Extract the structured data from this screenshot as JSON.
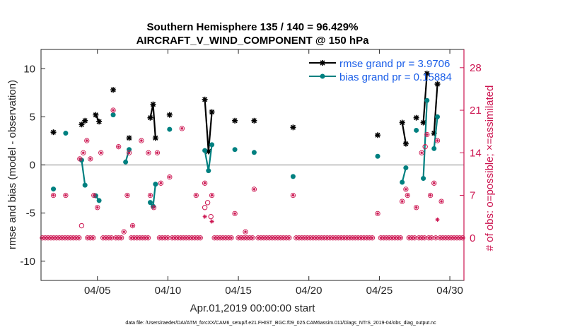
{
  "chart_data": {
    "type": "line",
    "title": "Southern Hemisphere 135 / 140 = 96.429%",
    "subtitle": "AIRCRAFT_V_WIND_COMPONENT @ 150 hPa",
    "xlabel": "Apr.01,2019 00:00:00 start",
    "ylabel": "rmse and bias (model - observation)",
    "ylabel_right": "# of obs: o=possible; ×=assimilated",
    "xlim": [
      1,
      31
    ],
    "ylim": [
      -12,
      12
    ],
    "ylim_right": [
      -7,
      31
    ],
    "x_ticks": [
      5,
      10,
      15,
      20,
      25,
      30
    ],
    "x_tick_labels": [
      "04/05",
      "04/10",
      "04/15",
      "04/20",
      "04/25",
      "04/30"
    ],
    "y_ticks": [
      -10,
      -5,
      0,
      5,
      10
    ],
    "y_tick_labels": [
      "-10",
      "-5",
      "0",
      "5",
      "10"
    ],
    "y_right_ticks": [
      0,
      7,
      14,
      21,
      28
    ],
    "y_right_tick_labels": [
      "0",
      "7",
      "14",
      "21",
      "28"
    ],
    "footer": "data file: /Users/raeder/DAI/ATM_forcXX/CAM6_setup/f.e21.FHIST_BGC.f09_025.CAM6assim.011/Diags_NTrS_2019-04/obs_diag_output.nc",
    "series": [
      {
        "name": "rmse grand pr = 3.9706",
        "color": "#000000",
        "marker": "asterisk",
        "segments": [
          [
            [
              1.88,
              3.4
            ]
          ],
          [
            [
              3.88,
              4.2
            ],
            [
              4.12,
              4.6
            ]
          ],
          [
            [
              4.88,
              5.2
            ],
            [
              5.12,
              4.5
            ]
          ],
          [
            [
              6.12,
              7.8
            ]
          ],
          [
            [
              7.25,
              2.8
            ]
          ],
          [
            [
              8.75,
              4.9
            ],
            [
              8.95,
              6.3
            ],
            [
              9.12,
              2.8
            ]
          ],
          [
            [
              10.12,
              5.2
            ]
          ],
          [
            [
              12.62,
              6.8
            ],
            [
              12.88,
              1.4
            ],
            [
              13.12,
              5.5
            ]
          ],
          [
            [
              14.75,
              4.6
            ]
          ],
          [
            [
              16.12,
              4.6
            ]
          ],
          [
            [
              18.88,
              3.9
            ]
          ],
          [
            [
              24.88,
              3.1
            ]
          ],
          [
            [
              26.62,
              4.4
            ],
            [
              26.88,
              2.2
            ]
          ],
          [
            [
              27.62,
              4.9
            ]
          ],
          [
            [
              28.12,
              4.4
            ],
            [
              28.38,
              9.5
            ]
          ],
          [
            [
              28.88,
              3.3
            ],
            [
              29.12,
              8.4
            ]
          ]
        ]
      },
      {
        "name": "bias grand pr = 0.15884",
        "color": "#008080",
        "marker": "dot",
        "segments": [
          [
            [
              1.88,
              -2.5
            ]
          ],
          [
            [
              2.75,
              3.3
            ]
          ],
          [
            [
              3.88,
              0.5
            ],
            [
              4.12,
              -2.1
            ]
          ],
          [
            [
              4.88,
              -3.2
            ],
            [
              5.12,
              -3.7
            ]
          ],
          [
            [
              6.12,
              5.2
            ]
          ],
          [
            [
              7.0,
              0.3
            ],
            [
              7.25,
              1.6
            ]
          ],
          [
            [
              8.75,
              -3.9
            ],
            [
              8.95,
              -4.3
            ],
            [
              9.12,
              -2.0
            ]
          ],
          [
            [
              10.12,
              3.7
            ]
          ],
          [
            [
              12.62,
              1.5
            ],
            [
              12.88,
              -0.6
            ],
            [
              13.12,
              2.1
            ]
          ],
          [
            [
              14.75,
              1.6
            ]
          ],
          [
            [
              16.12,
              1.3
            ]
          ],
          [
            [
              18.88,
              -1.2
            ]
          ],
          [
            [
              24.88,
              0.9
            ]
          ],
          [
            [
              26.62,
              -1.8
            ],
            [
              26.88,
              -0.3
            ]
          ],
          [
            [
              27.62,
              3.6
            ]
          ],
          [
            [
              28.12,
              -1.4
            ],
            [
              28.38,
              6.7
            ]
          ],
          [
            [
              28.88,
              1.7
            ],
            [
              29.12,
              5.0
            ]
          ]
        ]
      },
      {
        "name": "# of obs possible",
        "color": "#cc1450",
        "marker": "circle",
        "points": [
          [
            3.88,
            2
          ],
          [
            12.62,
            5
          ],
          [
            12.82,
            5.8
          ],
          [
            13.05,
            3.5
          ],
          [
            28.25,
            15
          ]
        ]
      },
      {
        "name": "# of obs assimilated",
        "color": "#cc1450",
        "marker": "x",
        "points": [
          [
            12.62,
            3.5
          ],
          [
            13.12,
            2.7
          ],
          [
            29.12,
            3
          ]
        ]
      },
      {
        "name": "# of obs (possible + assimilated)",
        "color": "#cc1450",
        "marker": "circle-star",
        "points": [
          [
            1.88,
            7
          ],
          [
            2.75,
            7
          ],
          [
            3.75,
            13
          ],
          [
            4.0,
            14
          ],
          [
            4.25,
            16
          ],
          [
            4.5,
            13
          ],
          [
            4.75,
            7
          ],
          [
            5.0,
            5
          ],
          [
            5.25,
            14
          ],
          [
            6.12,
            21
          ],
          [
            6.5,
            15
          ],
          [
            6.88,
            1
          ],
          [
            7.12,
            7
          ],
          [
            7.25,
            14
          ],
          [
            7.5,
            2
          ],
          [
            8.12,
            16
          ],
          [
            8.62,
            14
          ],
          [
            8.75,
            7
          ],
          [
            9.0,
            5
          ],
          [
            9.25,
            14
          ],
          [
            9.5,
            9
          ],
          [
            10.12,
            10
          ],
          [
            11.0,
            18
          ],
          [
            12.0,
            7
          ],
          [
            12.62,
            9
          ],
          [
            13.12,
            7
          ],
          [
            14.75,
            4
          ],
          [
            15.5,
            1
          ],
          [
            16.12,
            8
          ],
          [
            18.88,
            7
          ],
          [
            24.88,
            4
          ],
          [
            26.62,
            6
          ],
          [
            26.88,
            8
          ],
          [
            27.0,
            7
          ],
          [
            27.62,
            5
          ],
          [
            28.0,
            14
          ],
          [
            28.38,
            17
          ],
          [
            28.62,
            7
          ],
          [
            28.88,
            9
          ],
          [
            29.12,
            16
          ],
          [
            29.4,
            6
          ]
        ]
      },
      {
        "name": "# of obs zero count",
        "color": "#cc1450",
        "marker": "circle-star",
        "points": [
          [
            1.1,
            0
          ],
          [
            1.3,
            0
          ],
          [
            1.5,
            0
          ],
          [
            1.7,
            0
          ],
          [
            1.9,
            0
          ],
          [
            2.1,
            0
          ],
          [
            2.3,
            0
          ],
          [
            2.5,
            0
          ],
          [
            2.7,
            0
          ],
          [
            2.9,
            0
          ],
          [
            3.1,
            0
          ],
          [
            3.3,
            0
          ],
          [
            3.5,
            0
          ],
          [
            3.7,
            0
          ],
          [
            4.3,
            0
          ],
          [
            4.5,
            0
          ],
          [
            4.7,
            0
          ],
          [
            5.4,
            0
          ],
          [
            5.6,
            0
          ],
          [
            5.8,
            0
          ],
          [
            6.0,
            0
          ],
          [
            6.3,
            0
          ],
          [
            6.5,
            0
          ],
          [
            6.7,
            0
          ],
          [
            7.4,
            0
          ],
          [
            7.6,
            0
          ],
          [
            7.8,
            0
          ],
          [
            8.0,
            0
          ],
          [
            8.2,
            0
          ],
          [
            8.4,
            0
          ],
          [
            8.6,
            0
          ],
          [
            9.4,
            0
          ],
          [
            9.6,
            0
          ],
          [
            9.8,
            0
          ],
          [
            10.0,
            0
          ],
          [
            10.3,
            0
          ],
          [
            10.5,
            0
          ],
          [
            10.7,
            0
          ],
          [
            10.9,
            0
          ],
          [
            11.1,
            0
          ],
          [
            11.3,
            0
          ],
          [
            11.5,
            0
          ],
          [
            11.7,
            0
          ],
          [
            11.9,
            0
          ],
          [
            12.1,
            0
          ],
          [
            12.3,
            0
          ],
          [
            13.3,
            0
          ],
          [
            13.5,
            0
          ],
          [
            13.7,
            0
          ],
          [
            13.9,
            0
          ],
          [
            14.1,
            0
          ],
          [
            14.3,
            0
          ],
          [
            14.5,
            0
          ],
          [
            15.0,
            0
          ],
          [
            15.2,
            0
          ],
          [
            15.4,
            0
          ],
          [
            15.6,
            0
          ],
          [
            15.8,
            0
          ],
          [
            16.0,
            0
          ],
          [
            16.4,
            0
          ],
          [
            16.6,
            0
          ],
          [
            16.8,
            0
          ],
          [
            17.0,
            0
          ],
          [
            17.2,
            0
          ],
          [
            17.4,
            0
          ],
          [
            17.6,
            0
          ],
          [
            17.8,
            0
          ],
          [
            18.0,
            0
          ],
          [
            18.2,
            0
          ],
          [
            18.4,
            0
          ],
          [
            18.6,
            0
          ],
          [
            19.1,
            0
          ],
          [
            19.3,
            0
          ],
          [
            19.5,
            0
          ],
          [
            19.7,
            0
          ],
          [
            19.9,
            0
          ],
          [
            20.1,
            0
          ],
          [
            20.3,
            0
          ],
          [
            20.5,
            0
          ],
          [
            20.7,
            0
          ],
          [
            20.9,
            0
          ],
          [
            21.1,
            0
          ],
          [
            21.3,
            0
          ],
          [
            21.5,
            0
          ],
          [
            21.7,
            0
          ],
          [
            21.9,
            0
          ],
          [
            22.1,
            0
          ],
          [
            22.3,
            0
          ],
          [
            22.5,
            0
          ],
          [
            22.7,
            0
          ],
          [
            22.9,
            0
          ],
          [
            23.1,
            0
          ],
          [
            23.3,
            0
          ],
          [
            23.5,
            0
          ],
          [
            23.7,
            0
          ],
          [
            23.9,
            0
          ],
          [
            24.1,
            0
          ],
          [
            24.3,
            0
          ],
          [
            24.5,
            0
          ],
          [
            25.1,
            0
          ],
          [
            25.3,
            0
          ],
          [
            25.5,
            0
          ],
          [
            25.7,
            0
          ],
          [
            25.9,
            0
          ],
          [
            26.1,
            0
          ],
          [
            26.3,
            0
          ],
          [
            26.5,
            0
          ],
          [
            27.1,
            0
          ],
          [
            27.3,
            0
          ],
          [
            27.5,
            0
          ],
          [
            27.8,
            0
          ],
          [
            28.0,
            0
          ],
          [
            28.2,
            0
          ],
          [
            28.5,
            0
          ],
          [
            28.7,
            0
          ],
          [
            29.0,
            0
          ],
          [
            29.3,
            0
          ],
          [
            29.5,
            0
          ],
          [
            29.7,
            0
          ],
          [
            29.9,
            0
          ],
          [
            30.1,
            0
          ],
          [
            30.3,
            0
          ],
          [
            30.5,
            0
          ],
          [
            30.7,
            0
          ],
          [
            30.9,
            0
          ]
        ]
      }
    ]
  }
}
